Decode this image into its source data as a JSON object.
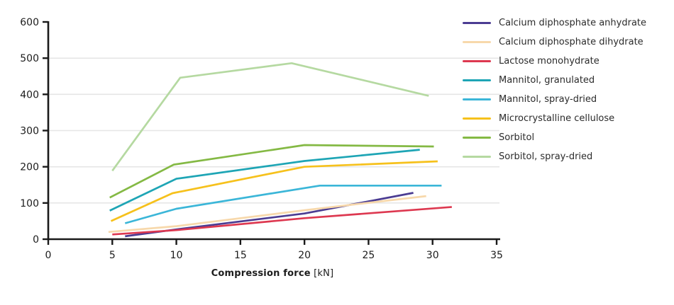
{
  "chart_data": {
    "type": "line",
    "title": "",
    "xlabel_bold": "Compression force",
    "xlabel_unit": " [kN]",
    "ylabel": "",
    "xlim": [
      0,
      35
    ],
    "ylim": [
      0,
      600
    ],
    "x_ticks": [
      0,
      5,
      10,
      15,
      20,
      25,
      30,
      35
    ],
    "y_ticks": [
      0,
      100,
      200,
      300,
      400,
      500,
      600
    ],
    "grid_y": [
      100,
      200,
      300,
      400,
      500
    ],
    "grid_on": true,
    "legend_position": "right",
    "axis_color": "#1a1a1a",
    "grid_color": "#e6e6e6",
    "series": [
      {
        "name": "Calcium diphosphate anhydrate",
        "color": "#4b3c92",
        "x": [
          6,
          10,
          20,
          28.5
        ],
        "y": [
          8,
          27,
          71,
          128
        ]
      },
      {
        "name": "Calcium diphosphate dihydrate",
        "color": "#f7d8ab",
        "x": [
          4.7,
          10,
          20,
          29.5
        ],
        "y": [
          20,
          36,
          80,
          119
        ]
      },
      {
        "name": "Lactose monohydrate",
        "color": "#dd3850",
        "x": [
          5,
          10,
          20,
          31.5
        ],
        "y": [
          13,
          25,
          58,
          89
        ]
      },
      {
        "name": "Mannitol, granulated",
        "color": "#1ea5b5",
        "x": [
          4.8,
          10,
          20,
          29
        ],
        "y": [
          79,
          167,
          216,
          247
        ]
      },
      {
        "name": "Mannitol, spray-dried",
        "color": "#3bb6d8",
        "x": [
          6,
          10,
          21.2,
          30.7
        ],
        "y": [
          44,
          84,
          148,
          148
        ]
      },
      {
        "name": "Microcrystalline cellulose",
        "color": "#f6c11c",
        "x": [
          4.9,
          9.7,
          20,
          30.4
        ],
        "y": [
          50,
          127,
          200,
          215
        ]
      },
      {
        "name": "Sorbitol",
        "color": "#84b944",
        "x": [
          4.8,
          9.8,
          20,
          30.1
        ],
        "y": [
          115,
          206,
          260,
          256
        ]
      },
      {
        "name": "Sorbitol, spray-dried",
        "color": "#b5d9a1",
        "x": [
          5,
          10.3,
          19,
          29.7
        ],
        "y": [
          189,
          446,
          486,
          396
        ]
      }
    ]
  }
}
